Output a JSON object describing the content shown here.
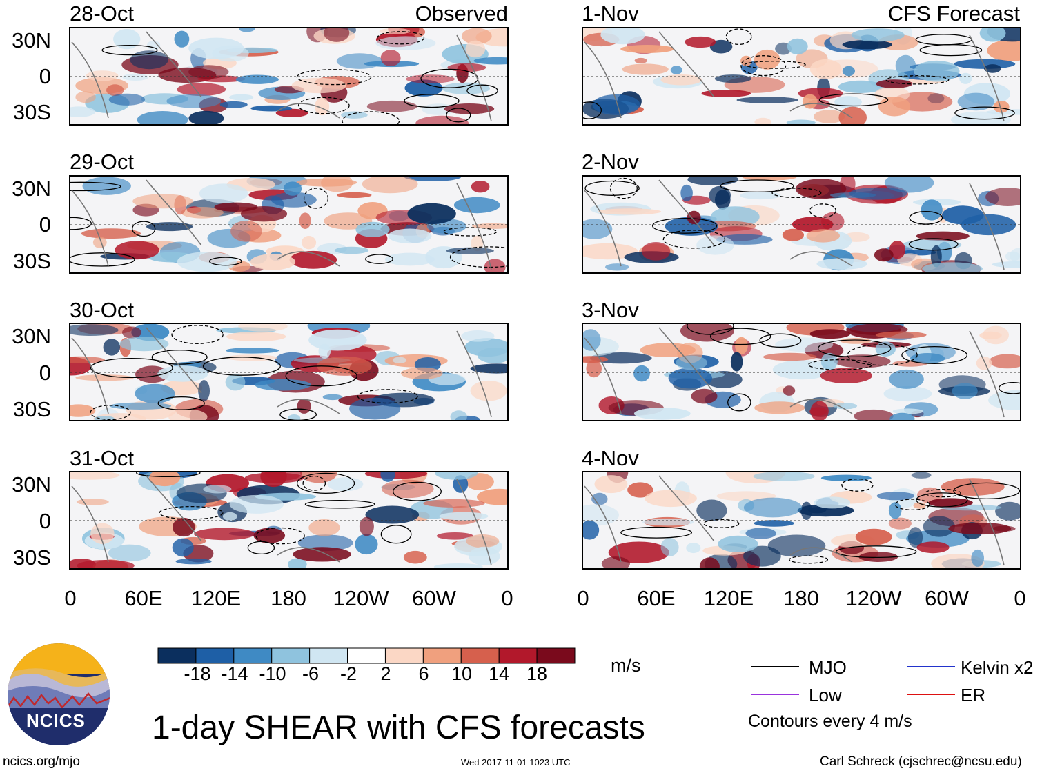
{
  "title": "1-day SHEAR with CFS forecasts",
  "observed_label": "Observed",
  "forecast_label": "CFS Forecast",
  "lat_ticks": [
    "30N",
    "0",
    "30S"
  ],
  "lon_ticks": [
    "0",
    "60E",
    "120E",
    "180",
    "120W",
    "60W",
    "0"
  ],
  "observed_dates": [
    "28-Oct",
    "29-Oct",
    "30-Oct",
    "31-Oct"
  ],
  "forecast_dates": [
    "1-Nov",
    "2-Nov",
    "3-Nov",
    "4-Nov"
  ],
  "colorbar": {
    "labels": [
      "-18",
      "-14",
      "-10",
      "-6",
      "-2",
      "2",
      "6",
      "10",
      "14",
      "18"
    ],
    "colors": [
      "#0b2f5e",
      "#1e5fa6",
      "#3f8ac4",
      "#8fc3de",
      "#d0e6f2",
      "#ffffff",
      "#fbd7c5",
      "#f0a07e",
      "#d6604d",
      "#b2182b",
      "#7a0a1c"
    ],
    "units": "m/s"
  },
  "legend": {
    "items": [
      {
        "label": "MJO",
        "color": "#000000"
      },
      {
        "label": "Kelvin x2",
        "color": "#2233cc"
      },
      {
        "label": "Low",
        "color": "#9933dd"
      },
      {
        "label": "ER",
        "color": "#dd1111"
      }
    ],
    "note": "Contours every 4 m/s"
  },
  "logo": {
    "text": "NCICS"
  },
  "footer": {
    "left": "ncics.org/mjo",
    "center": "Wed 2017-11-01 1023 UTC",
    "right": "Carl Schreck (cjschrec@ncsu.edu)"
  }
}
